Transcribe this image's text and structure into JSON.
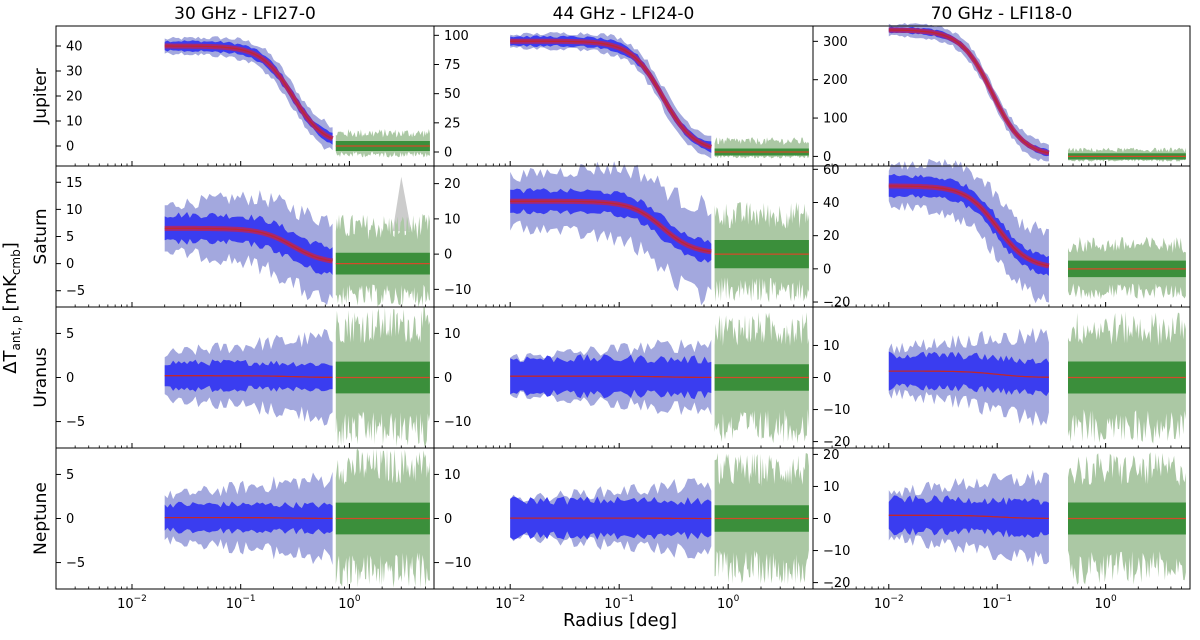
{
  "chart_data": {
    "type": "area",
    "title": "",
    "xlabel": "Radius [deg]",
    "ylabel_main": "ΔT",
    "ylabel_sub": "ant, p",
    "ylabel_unit": "[mK",
    "ylabel_unit_sub": "cmb",
    "ylabel_unit_close": "]",
    "xscale": "log",
    "xlim": [
      0.002,
      6
    ],
    "xtick_labels": [
      {
        "base": "10",
        "exp": "−2",
        "value": 0.01
      },
      {
        "base": "10",
        "exp": "−1",
        "value": 0.1
      },
      {
        "base": "10",
        "exp": "0",
        "value": 1
      }
    ],
    "bands": {
      "profile_outer": "#a3a8de",
      "profile_inner": "#3a3df0",
      "profile_mean": "#c1272d",
      "background_outer": "#abc8a4",
      "background_inner": "#3b8f3b",
      "background_mean": "#d34a2a",
      "overlap": "#b8235f",
      "spike": "#cccccc"
    },
    "columns": [
      {
        "title": "30 GHz - LFI27-0",
        "r_start": 0.02,
        "r_end": 0.7,
        "bg_start": 0.75,
        "bg_end": 5.5
      },
      {
        "title": "44 GHz - LFI24-0",
        "r_start": 0.01,
        "r_end": 0.7,
        "bg_start": 0.75,
        "bg_end": 5.5
      },
      {
        "title": "70 GHz - LFI18-0",
        "r_start": 0.01,
        "r_end": 0.3,
        "bg_start": 0.45,
        "bg_end": 5.5
      }
    ],
    "rows": [
      {
        "planet": "Jupiter",
        "panels": [
          {
            "ylim": [
              -8,
              48
            ],
            "yticks": [
              0,
              10,
              20,
              30,
              40
            ],
            "amp": 40,
            "scale": 0.3,
            "inner": 2,
            "outer": 4,
            "bg_inner": 2,
            "bg_outer": 6,
            "bg_lo_outer": 4,
            "spike": false
          },
          {
            "ylim": [
              -12,
              108
            ],
            "yticks": [
              0,
              25,
              50,
              75,
              100
            ],
            "amp": 95,
            "scale": 0.25,
            "inner": 4,
            "outer": 8,
            "bg_inner": 3,
            "bg_outer": 11,
            "bg_lo_outer": 5,
            "spike": false
          },
          {
            "ylim": [
              -25,
              340
            ],
            "yticks": [
              0,
              100,
              200,
              300
            ],
            "amp": 330,
            "scale": 0.09,
            "inner": 8,
            "outer": 20,
            "bg_inner": 8,
            "bg_outer": 20,
            "bg_lo_outer": 12,
            "spike": false
          }
        ]
      },
      {
        "planet": "Saturn",
        "panels": [
          {
            "ylim": [
              -8,
              18
            ],
            "yticks": [
              -5,
              0,
              5,
              10,
              15
            ],
            "amp": 6.5,
            "scale": 0.3,
            "inner": 2.5,
            "outer": 6,
            "bg_inner": 2,
            "bg_outer": 8,
            "bg_lo_outer": 7,
            "spike": true
          },
          {
            "ylim": [
              -15,
              25
            ],
            "yticks": [
              -10,
              0,
              10,
              20
            ],
            "amp": 15,
            "scale": 0.25,
            "inner": 3,
            "outer": 10,
            "bg_inner": 4,
            "bg_outer": 13,
            "bg_lo_outer": 12,
            "spike": false
          },
          {
            "ylim": [
              -23,
              62
            ],
            "yticks": [
              -20,
              0,
              20,
              40,
              60
            ],
            "amp": 50,
            "scale": 0.1,
            "inner": 6,
            "outer": 16,
            "bg_inner": 5,
            "bg_outer": 17,
            "bg_lo_outer": 16,
            "spike": false
          }
        ]
      },
      {
        "planet": "Uranus",
        "panels": [
          {
            "ylim": [
              -8,
              8
            ],
            "yticks": [
              -5,
              0,
              5
            ],
            "amp": 0.2,
            "scale": 0.3,
            "inner": 1.5,
            "outer": 3.5,
            "bg_inner": 1.8,
            "bg_outer": 7,
            "bg_lo_outer": 7,
            "spike": false
          },
          {
            "ylim": [
              -16,
              16
            ],
            "yticks": [
              -10,
              0,
              10
            ],
            "amp": 0.3,
            "scale": 0.25,
            "inner": 4,
            "outer": 6,
            "bg_inner": 3,
            "bg_outer": 13,
            "bg_lo_outer": 13,
            "spike": false
          },
          {
            "ylim": [
              -22,
              22
            ],
            "yticks": [
              -20,
              -10,
              0,
              10
            ],
            "amp": 2,
            "scale": 0.1,
            "inner": 5,
            "outer": 10,
            "bg_inner": 5,
            "bg_outer": 18,
            "bg_lo_outer": 18,
            "spike": false
          }
        ]
      },
      {
        "planet": "Neptune",
        "panels": [
          {
            "ylim": [
              -8,
              8
            ],
            "yticks": [
              -5,
              0,
              5
            ],
            "amp": 0.1,
            "scale": 0.3,
            "inner": 1.5,
            "outer": 3.5,
            "bg_inner": 1.8,
            "bg_outer": 7,
            "bg_lo_outer": 7,
            "spike": false
          },
          {
            "ylim": [
              -16,
              16
            ],
            "yticks": [
              -10,
              0,
              10
            ],
            "amp": 0.1,
            "scale": 0.25,
            "inner": 4,
            "outer": 6,
            "bg_inner": 3,
            "bg_outer": 13,
            "bg_lo_outer": 13,
            "spike": false
          },
          {
            "ylim": [
              -22,
              22
            ],
            "yticks": [
              -20,
              -10,
              0,
              10,
              20
            ],
            "amp": 1,
            "scale": 0.1,
            "inner": 5,
            "outer": 10,
            "bg_inner": 5,
            "bg_outer": 18,
            "bg_lo_outer": 18,
            "spike": false
          }
        ]
      }
    ]
  }
}
